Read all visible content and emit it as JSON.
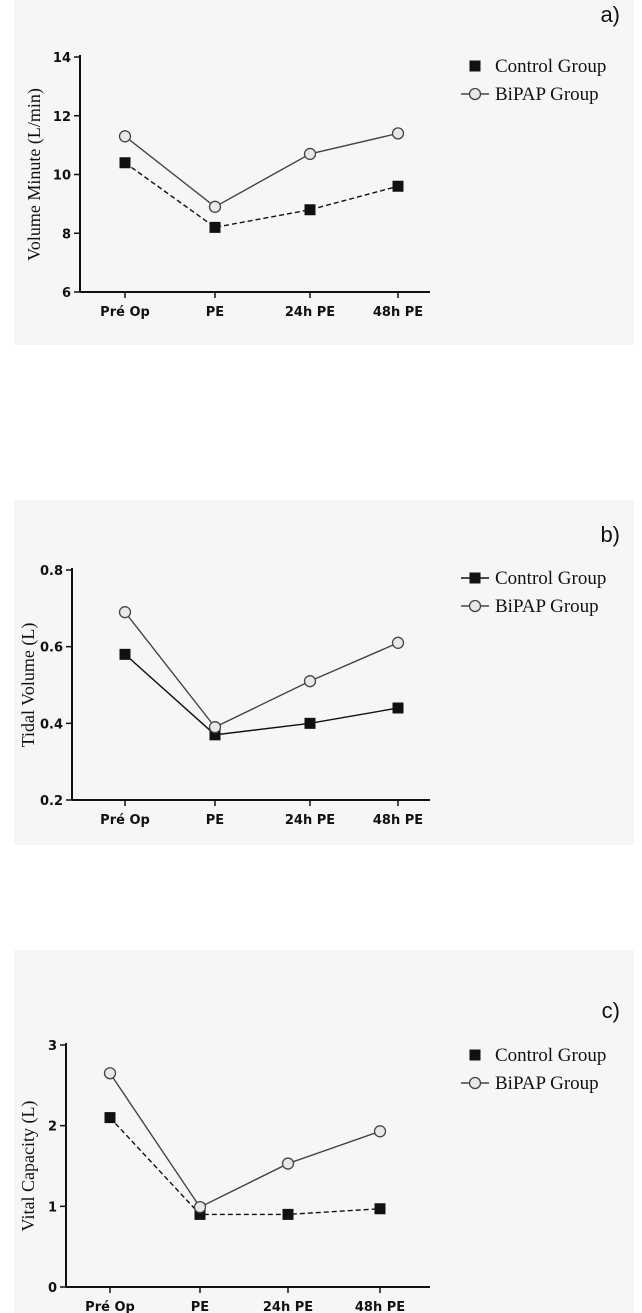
{
  "chart_data": [
    {
      "type": "line",
      "panel_label": "a)",
      "ylabel": "Volume Minute (L/min)",
      "xlabel": "",
      "categories": [
        "Pré Op",
        "PE",
        "24h PE",
        "48h PE"
      ],
      "ylim": [
        6,
        14
      ],
      "yticks": [
        6,
        8,
        10,
        12,
        14
      ],
      "legend_position": "top-right",
      "series": [
        {
          "name": "Control Group",
          "marker": "square",
          "values": [
            10.4,
            8.2,
            8.8,
            9.6
          ],
          "color": "#111111",
          "dashed": true
        },
        {
          "name": "BiPAP Group",
          "marker": "circle",
          "values": [
            11.3,
            8.9,
            10.7,
            11.4
          ],
          "color": "#444444",
          "dashed": false
        }
      ]
    },
    {
      "type": "line",
      "panel_label": "b)",
      "ylabel": "Tidal Volume (L)",
      "xlabel": "",
      "categories": [
        "Pré Op",
        "PE",
        "24h PE",
        "48h PE"
      ],
      "ylim": [
        0.2,
        0.8
      ],
      "yticks": [
        0.2,
        0.4,
        0.6,
        0.8
      ],
      "legend_position": "top-right",
      "series": [
        {
          "name": "Control Group",
          "marker": "square",
          "values": [
            0.58,
            0.37,
            0.4,
            0.44
          ],
          "color": "#111111",
          "dashed": false
        },
        {
          "name": "BiPAP Group",
          "marker": "circle",
          "values": [
            0.69,
            0.39,
            0.51,
            0.61
          ],
          "color": "#444444",
          "dashed": false
        }
      ]
    },
    {
      "type": "line",
      "panel_label": "c)",
      "ylabel": "Vital Capacity (L)",
      "xlabel": "",
      "categories": [
        "Pré Op",
        "PE",
        "24h PE",
        "48h PE"
      ],
      "ylim": [
        0,
        3
      ],
      "yticks": [
        0,
        1,
        2,
        3
      ],
      "legend_position": "top-right",
      "series": [
        {
          "name": "Control Group",
          "marker": "square",
          "values": [
            2.1,
            0.9,
            0.9,
            0.97
          ],
          "color": "#111111",
          "dashed": true
        },
        {
          "name": "BiPAP Group",
          "marker": "circle",
          "values": [
            2.65,
            0.99,
            1.53,
            1.93
          ],
          "color": "#444444",
          "dashed": false
        }
      ]
    }
  ]
}
